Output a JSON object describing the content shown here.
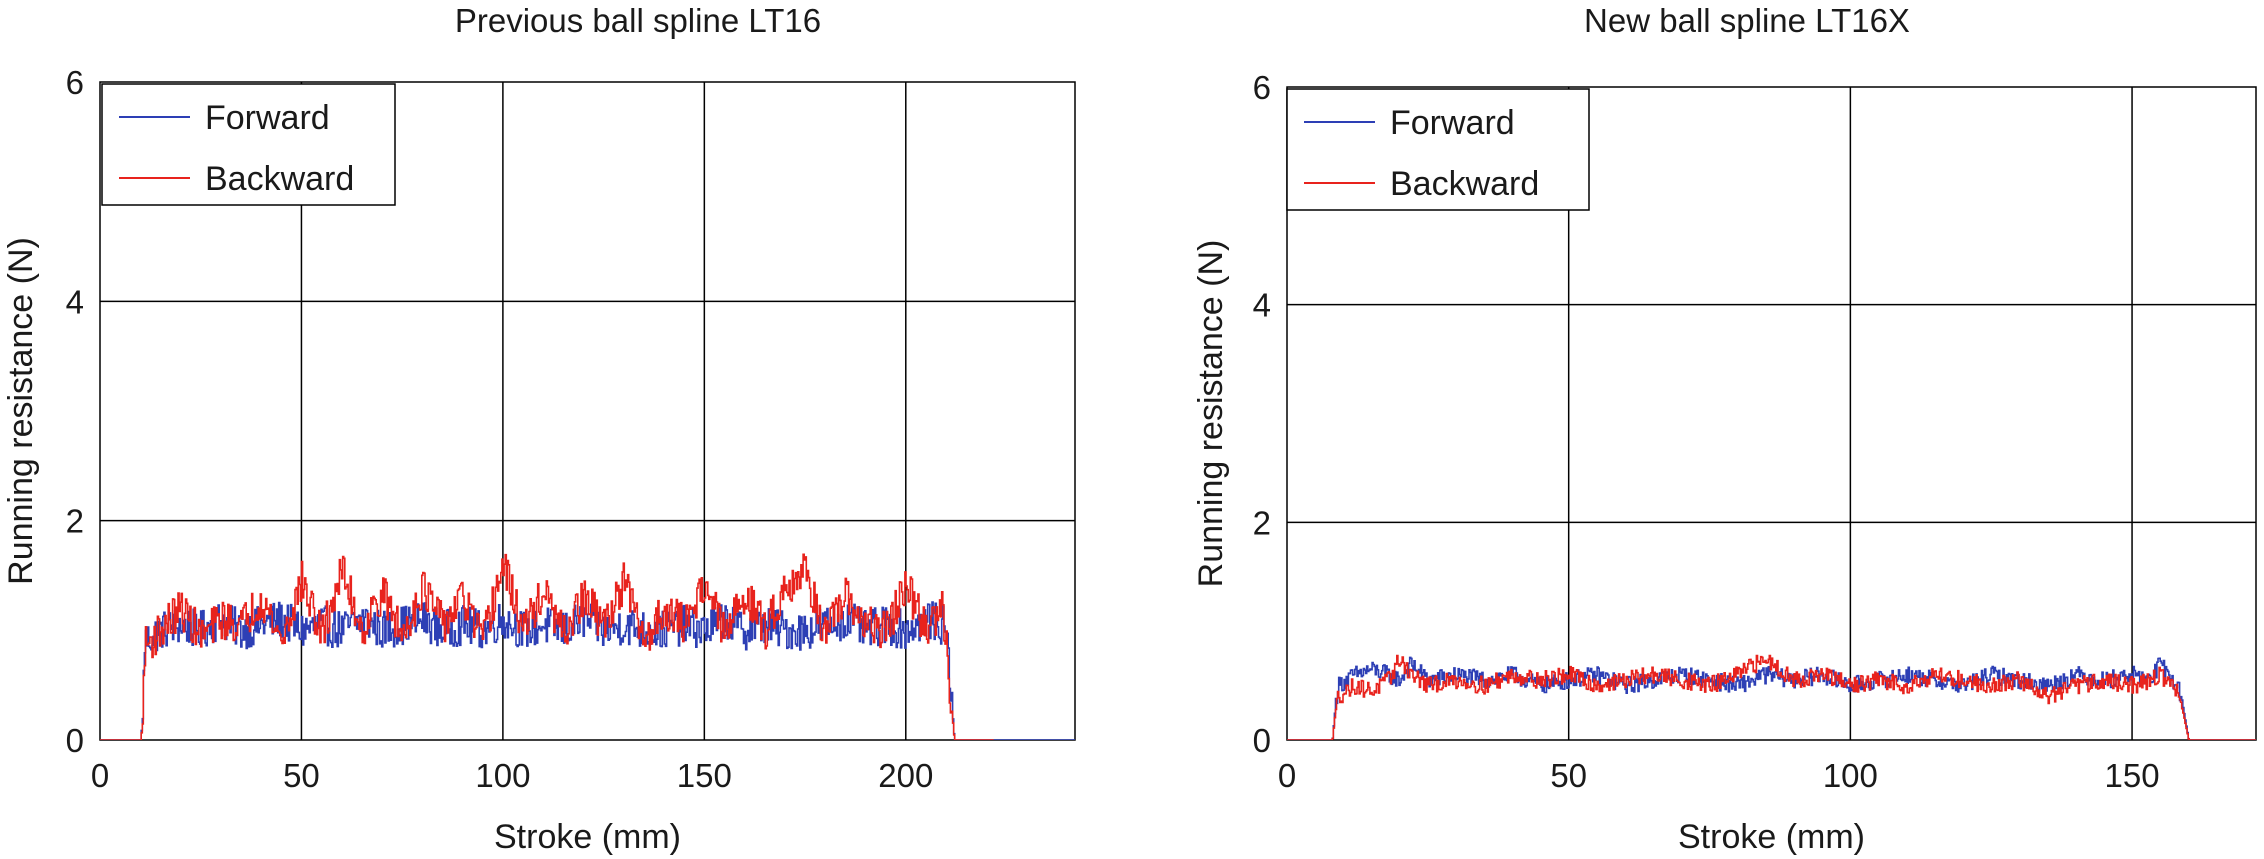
{
  "colors": {
    "forward": "#2d3fb5",
    "backward": "#e8231d",
    "axes": "#000000",
    "grid": "#000000"
  },
  "chart_data": [
    {
      "type": "line",
      "title": "Previous ball spline LT16",
      "xlabel": "Stroke (mm)",
      "ylabel": "Running resistance (N)",
      "xlim": [
        0,
        242
      ],
      "ylim": [
        0,
        6
      ],
      "xticks": [
        "0",
        "50",
        "100",
        "150",
        "200"
      ],
      "yticks": [
        "0",
        "2",
        "4",
        "6"
      ],
      "grid": true,
      "legend_position": "top-left",
      "series": [
        {
          "name": "Forward",
          "x": [
            0,
            10,
            10.5,
            11,
            15,
            20,
            25,
            30,
            35,
            40,
            45,
            50,
            55,
            60,
            65,
            70,
            75,
            80,
            85,
            90,
            95,
            100,
            105,
            110,
            115,
            120,
            125,
            130,
            135,
            140,
            145,
            150,
            155,
            160,
            165,
            170,
            175,
            180,
            185,
            190,
            195,
            200,
            205,
            209,
            210,
            211,
            212,
            242
          ],
          "y": [
            0,
            0,
            0.2,
            0.9,
            1.0,
            1.05,
            1.0,
            1.1,
            1.0,
            1.05,
            1.1,
            1.0,
            1.05,
            1.0,
            1.1,
            1.0,
            1.05,
            1.1,
            1.0,
            1.05,
            1.0,
            1.1,
            1.0,
            1.05,
            1.0,
            1.1,
            1.0,
            1.05,
            1.0,
            1.0,
            1.05,
            1.0,
            1.1,
            1.0,
            1.05,
            1.0,
            1.0,
            1.05,
            1.1,
            1.0,
            1.05,
            1.0,
            1.1,
            1.05,
            1.0,
            0.5,
            0,
            0
          ]
        },
        {
          "name": "Backward",
          "x": [
            0,
            10,
            10.5,
            11,
            15,
            20,
            25,
            30,
            35,
            40,
            45,
            50,
            55,
            60,
            65,
            70,
            75,
            80,
            85,
            90,
            95,
            100,
            105,
            110,
            115,
            120,
            125,
            130,
            135,
            140,
            145,
            150,
            155,
            160,
            165,
            170,
            175,
            180,
            185,
            190,
            195,
            200,
            205,
            209,
            210,
            211,
            212,
            222
          ],
          "y": [
            0,
            0,
            0.15,
            0.85,
            1.0,
            1.2,
            0.95,
            1.1,
            1.05,
            1.3,
            0.9,
            1.45,
            0.95,
            1.55,
            1.0,
            1.35,
            0.95,
            1.4,
            1.05,
            1.3,
            0.9,
            1.6,
            1.0,
            1.35,
            0.95,
            1.3,
            1.05,
            1.45,
            0.9,
            1.2,
            1.05,
            1.45,
            0.95,
            1.35,
            1.0,
            1.4,
            1.55,
            0.95,
            1.3,
            1.05,
            1.0,
            1.4,
            1.0,
            1.2,
            0.9,
            0.4,
            0,
            0
          ]
        }
      ]
    },
    {
      "type": "line",
      "title": "New ball spline LT16X",
      "xlabel": "Stroke (mm)",
      "ylabel": "Running resistance (N)",
      "xlim": [
        0,
        172
      ],
      "ylim": [
        0,
        6
      ],
      "xticks": [
        "0",
        "50",
        "100",
        "150"
      ],
      "yticks": [
        "0",
        "2",
        "4",
        "6"
      ],
      "grid": true,
      "legend_position": "top-left",
      "series": [
        {
          "name": "Forward",
          "x": [
            0,
            8,
            8.5,
            9,
            12,
            15,
            18,
            20,
            22,
            25,
            30,
            35,
            40,
            45,
            50,
            55,
            60,
            65,
            70,
            75,
            80,
            85,
            90,
            95,
            100,
            105,
            110,
            115,
            120,
            125,
            130,
            135,
            140,
            145,
            150,
            153,
            155,
            157,
            158,
            159,
            160,
            172
          ],
          "y": [
            0,
            0,
            0.3,
            0.5,
            0.6,
            0.65,
            0.6,
            0.55,
            0.7,
            0.55,
            0.6,
            0.55,
            0.6,
            0.5,
            0.55,
            0.6,
            0.5,
            0.55,
            0.6,
            0.55,
            0.5,
            0.6,
            0.55,
            0.6,
            0.5,
            0.55,
            0.6,
            0.55,
            0.5,
            0.6,
            0.55,
            0.5,
            0.6,
            0.55,
            0.6,
            0.55,
            0.7,
            0.55,
            0.5,
            0.3,
            0,
            0
          ]
        },
        {
          "name": "Backward",
          "x": [
            0,
            8,
            8.5,
            9,
            12,
            15,
            18,
            20,
            22,
            25,
            30,
            35,
            40,
            45,
            50,
            55,
            60,
            65,
            70,
            75,
            80,
            85,
            90,
            95,
            100,
            105,
            110,
            115,
            120,
            125,
            130,
            135,
            140,
            145,
            150,
            153,
            155,
            157,
            158,
            159,
            160,
            172
          ],
          "y": [
            0,
            0,
            0.25,
            0.4,
            0.5,
            0.45,
            0.55,
            0.75,
            0.6,
            0.5,
            0.55,
            0.5,
            0.6,
            0.55,
            0.6,
            0.5,
            0.55,
            0.6,
            0.55,
            0.5,
            0.6,
            0.75,
            0.55,
            0.6,
            0.5,
            0.55,
            0.5,
            0.6,
            0.55,
            0.5,
            0.55,
            0.4,
            0.5,
            0.55,
            0.5,
            0.55,
            0.6,
            0.5,
            0.45,
            0.25,
            0,
            0
          ]
        }
      ]
    }
  ]
}
